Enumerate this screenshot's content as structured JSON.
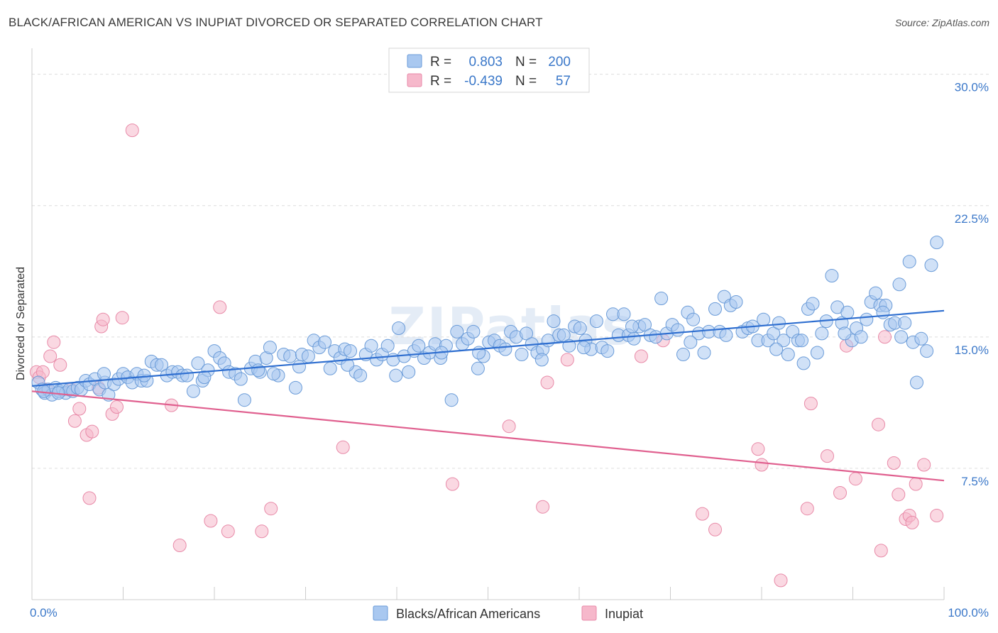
{
  "title": "BLACK/AFRICAN AMERICAN VS INUPIAT DIVORCED OR SEPARATED CORRELATION CHART",
  "source": "Source: ZipAtlas.com",
  "watermark": "ZIPatlas",
  "colors": {
    "blue_fill": "#a9c8f0",
    "blue_stroke": "#6a9bd8",
    "blue_line": "#2f6fd0",
    "pink_fill": "#f6b8cb",
    "pink_stroke": "#e88aa8",
    "pink_line": "#e0608f",
    "tick_text": "#3b78c9",
    "grid": "#dddddd"
  },
  "legend": {
    "rows": [
      {
        "r_label": "R =",
        "r_value": "0.803",
        "n_label": "N =",
        "n_value": "200"
      },
      {
        "r_label": "R =",
        "r_value": "-0.439",
        "n_label": "N =",
        "n_value": "57"
      }
    ]
  },
  "bottom_legend": [
    "Blacks/African Americans",
    "Inupiat"
  ],
  "chart_data": {
    "type": "scatter",
    "title": "BLACK/AFRICAN AMERICAN VS INUPIAT DIVORCED OR SEPARATED CORRELATION CHART",
    "xlabel": "",
    "ylabel": "Divorced or Separated",
    "xlim": [
      0,
      100
    ],
    "ylim": [
      0,
      31
    ],
    "x_ticks": [
      "0.0%",
      "100.0%"
    ],
    "y_ticks": [
      {
        "value": 7.5,
        "label": "7.5%"
      },
      {
        "value": 15.0,
        "label": "15.0%"
      },
      {
        "value": 22.5,
        "label": "22.5%"
      },
      {
        "value": 30.0,
        "label": "30.0%"
      }
    ],
    "grid": true,
    "legend_position": "top-center",
    "series": [
      {
        "name": "Blacks/African Americans",
        "color": "blue",
        "trend": {
          "x": [
            0,
            100
          ],
          "y": [
            12.2,
            16.5
          ]
        },
        "points": [
          [
            0.7,
            12.4
          ],
          [
            1.1,
            12.0
          ],
          [
            1.4,
            11.8
          ],
          [
            1.8,
            12.0
          ],
          [
            2.2,
            11.7
          ],
          [
            2.6,
            12.1
          ],
          [
            3.0,
            11.9
          ],
          [
            3.4,
            12.0
          ],
          [
            3.7,
            11.8
          ],
          [
            4.1,
            12.0
          ],
          [
            4.5,
            11.9
          ],
          [
            5.0,
            12.1
          ],
          [
            5.4,
            12.0
          ],
          [
            5.9,
            12.5
          ],
          [
            6.3,
            12.3
          ],
          [
            6.9,
            12.6
          ],
          [
            7.4,
            12.0
          ],
          [
            8.0,
            12.4
          ],
          [
            8.4,
            11.7
          ],
          [
            9.0,
            12.3
          ],
          [
            9.5,
            12.6
          ],
          [
            10.0,
            12.9
          ],
          [
            10.5,
            12.7
          ],
          [
            11.0,
            12.4
          ],
          [
            11.5,
            12.9
          ],
          [
            12.0,
            12.5
          ],
          [
            12.6,
            12.5
          ],
          [
            13.1,
            13.6
          ],
          [
            13.7,
            13.4
          ],
          [
            14.2,
            13.4
          ],
          [
            14.8,
            12.8
          ],
          [
            15.4,
            13.0
          ],
          [
            16.0,
            13.0
          ],
          [
            16.5,
            12.8
          ],
          [
            17.0,
            12.8
          ],
          [
            17.7,
            11.9
          ],
          [
            18.2,
            13.5
          ],
          [
            18.7,
            12.5
          ],
          [
            19.3,
            13.1
          ],
          [
            20.0,
            14.2
          ],
          [
            20.6,
            13.8
          ],
          [
            21.1,
            13.5
          ],
          [
            21.6,
            13.0
          ],
          [
            22.3,
            12.9
          ],
          [
            22.9,
            12.6
          ],
          [
            23.3,
            11.4
          ],
          [
            24.0,
            13.2
          ],
          [
            24.5,
            13.6
          ],
          [
            25.0,
            13.0
          ],
          [
            25.7,
            13.8
          ],
          [
            26.1,
            14.4
          ],
          [
            27.0,
            12.8
          ],
          [
            27.6,
            14.0
          ],
          [
            28.3,
            13.9
          ],
          [
            28.9,
            12.1
          ],
          [
            29.6,
            14.0
          ],
          [
            30.3,
            13.9
          ],
          [
            30.9,
            14.8
          ],
          [
            31.5,
            14.4
          ],
          [
            32.1,
            14.7
          ],
          [
            32.7,
            13.2
          ],
          [
            33.2,
            14.2
          ],
          [
            33.8,
            13.8
          ],
          [
            34.3,
            14.3
          ],
          [
            34.9,
            14.2
          ],
          [
            35.5,
            13.0
          ],
          [
            36.0,
            12.8
          ],
          [
            36.6,
            14.0
          ],
          [
            37.2,
            14.5
          ],
          [
            37.8,
            13.7
          ],
          [
            38.4,
            14.0
          ],
          [
            39.0,
            14.5
          ],
          [
            39.6,
            13.7
          ],
          [
            40.2,
            15.5
          ],
          [
            40.8,
            13.9
          ],
          [
            41.3,
            13.0
          ],
          [
            41.9,
            14.2
          ],
          [
            42.4,
            14.5
          ],
          [
            43.0,
            13.8
          ],
          [
            43.6,
            14.1
          ],
          [
            44.2,
            14.6
          ],
          [
            44.8,
            13.8
          ],
          [
            45.4,
            14.5
          ],
          [
            46.0,
            11.4
          ],
          [
            46.6,
            15.3
          ],
          [
            47.2,
            14.6
          ],
          [
            47.8,
            14.9
          ],
          [
            48.4,
            15.3
          ],
          [
            48.9,
            13.2
          ],
          [
            49.5,
            13.9
          ],
          [
            50.1,
            14.7
          ],
          [
            50.7,
            14.8
          ],
          [
            51.3,
            14.5
          ],
          [
            51.9,
            14.3
          ],
          [
            52.5,
            15.3
          ],
          [
            53.1,
            15.0
          ],
          [
            53.7,
            14.0
          ],
          [
            54.2,
            15.2
          ],
          [
            54.8,
            14.6
          ],
          [
            55.4,
            14.1
          ],
          [
            56.0,
            14.3
          ],
          [
            56.6,
            14.8
          ],
          [
            57.2,
            15.9
          ],
          [
            57.8,
            15.1
          ],
          [
            58.3,
            15.1
          ],
          [
            58.9,
            14.5
          ],
          [
            59.5,
            15.6
          ],
          [
            60.1,
            15.5
          ],
          [
            60.7,
            14.8
          ],
          [
            61.3,
            14.3
          ],
          [
            61.9,
            15.9
          ],
          [
            62.5,
            14.4
          ],
          [
            63.1,
            14.2
          ],
          [
            63.7,
            16.3
          ],
          [
            64.3,
            15.1
          ],
          [
            64.9,
            16.3
          ],
          [
            65.4,
            15.1
          ],
          [
            66.0,
            14.9
          ],
          [
            66.6,
            15.6
          ],
          [
            67.2,
            15.7
          ],
          [
            67.8,
            15.1
          ],
          [
            68.4,
            15.0
          ],
          [
            69.0,
            17.2
          ],
          [
            69.6,
            15.2
          ],
          [
            70.2,
            15.7
          ],
          [
            70.8,
            15.4
          ],
          [
            71.4,
            14.0
          ],
          [
            71.9,
            16.4
          ],
          [
            72.5,
            16.0
          ],
          [
            73.1,
            15.2
          ],
          [
            73.7,
            14.1
          ],
          [
            74.2,
            15.3
          ],
          [
            74.9,
            16.6
          ],
          [
            75.4,
            15.3
          ],
          [
            75.9,
            17.3
          ],
          [
            76.6,
            16.8
          ],
          [
            77.2,
            17.0
          ],
          [
            77.9,
            15.3
          ],
          [
            78.5,
            15.5
          ],
          [
            79.0,
            15.6
          ],
          [
            79.6,
            14.8
          ],
          [
            80.2,
            16.0
          ],
          [
            80.7,
            14.8
          ],
          [
            81.3,
            15.2
          ],
          [
            81.9,
            15.8
          ],
          [
            82.4,
            14.8
          ],
          [
            82.9,
            14.0
          ],
          [
            83.4,
            15.3
          ],
          [
            84.0,
            14.8
          ],
          [
            84.6,
            13.5
          ],
          [
            85.1,
            16.6
          ],
          [
            85.6,
            16.9
          ],
          [
            86.1,
            14.1
          ],
          [
            86.6,
            15.2
          ],
          [
            87.1,
            15.9
          ],
          [
            87.7,
            18.5
          ],
          [
            88.3,
            16.7
          ],
          [
            88.8,
            15.8
          ],
          [
            89.4,
            16.4
          ],
          [
            89.9,
            14.8
          ],
          [
            90.4,
            15.5
          ],
          [
            90.9,
            15.0
          ],
          [
            91.5,
            16.0
          ],
          [
            92.0,
            17.0
          ],
          [
            92.5,
            17.5
          ],
          [
            93.0,
            16.8
          ],
          [
            93.6,
            16.8
          ],
          [
            94.1,
            15.7
          ],
          [
            94.6,
            15.8
          ],
          [
            95.1,
            18.0
          ],
          [
            95.7,
            15.8
          ],
          [
            96.2,
            19.3
          ],
          [
            96.6,
            14.7
          ],
          [
            97.0,
            12.4
          ],
          [
            97.5,
            14.9
          ],
          [
            98.1,
            14.2
          ],
          [
            98.6,
            19.1
          ],
          [
            99.2,
            20.4
          ],
          [
            1.3,
            11.9
          ],
          [
            2.9,
            11.8
          ],
          [
            7.9,
            12.9
          ],
          [
            12.3,
            12.8
          ],
          [
            18.9,
            12.7
          ],
          [
            26.5,
            12.9
          ],
          [
            34.6,
            13.4
          ],
          [
            39.9,
            12.8
          ],
          [
            49.0,
            14.1
          ],
          [
            55.9,
            13.7
          ],
          [
            65.8,
            15.6
          ],
          [
            72.2,
            14.7
          ],
          [
            76.1,
            15.1
          ],
          [
            81.6,
            14.3
          ],
          [
            84.4,
            14.8
          ],
          [
            89.1,
            15.2
          ],
          [
            93.3,
            16.4
          ],
          [
            95.3,
            15.0
          ],
          [
            24.8,
            13.1
          ],
          [
            29.3,
            13.3
          ],
          [
            44.9,
            14.1
          ],
          [
            60.5,
            14.4
          ]
        ]
      },
      {
        "name": "Inupiat",
        "color": "pink",
        "trend": {
          "x": [
            0,
            100
          ],
          "y": [
            11.9,
            6.8
          ]
        },
        "points": [
          [
            0.5,
            13.0
          ],
          [
            0.8,
            12.7
          ],
          [
            1.2,
            13.0
          ],
          [
            1.6,
            12.0
          ],
          [
            2.0,
            13.9
          ],
          [
            2.4,
            14.7
          ],
          [
            3.1,
            13.4
          ],
          [
            4.3,
            12.0
          ],
          [
            4.7,
            10.2
          ],
          [
            5.2,
            10.9
          ],
          [
            6.0,
            9.4
          ],
          [
            6.3,
            5.8
          ],
          [
            6.6,
            9.6
          ],
          [
            7.3,
            12.1
          ],
          [
            7.6,
            15.6
          ],
          [
            7.8,
            16.0
          ],
          [
            8.8,
            10.6
          ],
          [
            9.3,
            11.0
          ],
          [
            9.9,
            16.1
          ],
          [
            11.0,
            26.8
          ],
          [
            15.3,
            11.1
          ],
          [
            16.2,
            3.1
          ],
          [
            19.6,
            4.5
          ],
          [
            20.6,
            16.7
          ],
          [
            21.5,
            3.9
          ],
          [
            25.2,
            3.9
          ],
          [
            26.2,
            5.2
          ],
          [
            34.1,
            8.7
          ],
          [
            46.1,
            6.6
          ],
          [
            52.3,
            9.9
          ],
          [
            56.0,
            5.3
          ],
          [
            56.5,
            12.4
          ],
          [
            58.7,
            13.7
          ],
          [
            66.8,
            13.9
          ],
          [
            69.2,
            14.8
          ],
          [
            73.5,
            4.9
          ],
          [
            74.9,
            4.0
          ],
          [
            79.6,
            8.6
          ],
          [
            80.0,
            7.7
          ],
          [
            82.1,
            1.1
          ],
          [
            85.0,
            5.2
          ],
          [
            85.4,
            11.2
          ],
          [
            87.2,
            8.2
          ],
          [
            88.6,
            6.1
          ],
          [
            89.3,
            14.5
          ],
          [
            90.3,
            6.9
          ],
          [
            92.8,
            10.0
          ],
          [
            93.1,
            2.8
          ],
          [
            93.5,
            15.0
          ],
          [
            94.5,
            7.8
          ],
          [
            95.0,
            6.0
          ],
          [
            95.8,
            4.6
          ],
          [
            96.2,
            4.8
          ],
          [
            96.5,
            4.4
          ],
          [
            96.9,
            6.6
          ],
          [
            97.8,
            7.7
          ],
          [
            99.2,
            4.8
          ]
        ]
      }
    ]
  }
}
